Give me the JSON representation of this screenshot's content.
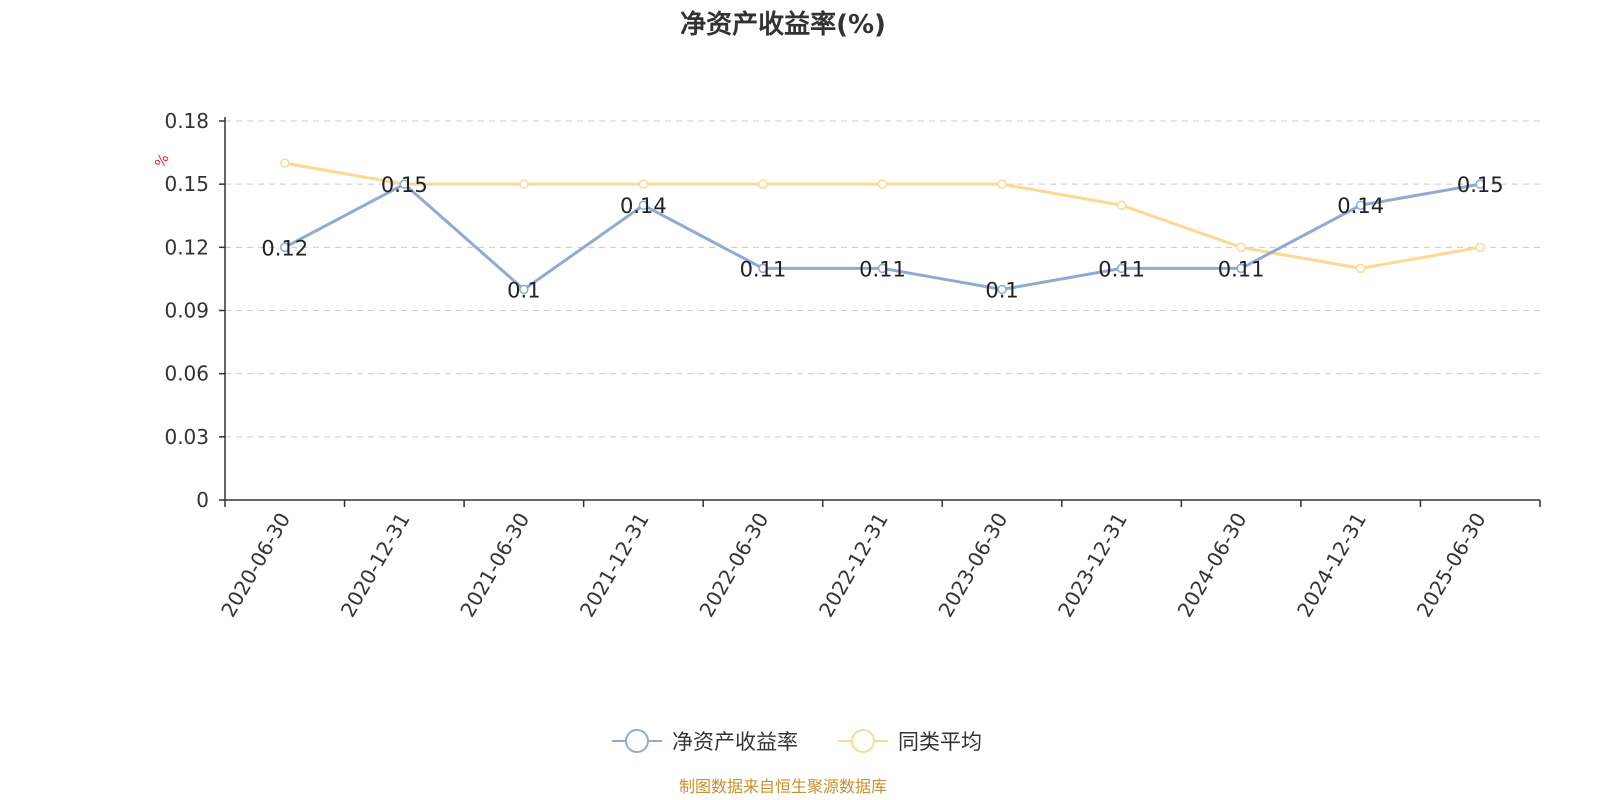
{
  "chart_data": {
    "type": "line",
    "title": "净资产收益率(%)",
    "ylabel": "%",
    "ylim": [
      0,
      0.18
    ],
    "yticks": [
      "0",
      "0.03",
      "0.06",
      "0.09",
      "0.12",
      "0.15",
      "0.18"
    ],
    "grid": true,
    "legend_position": "bottom",
    "categories": [
      "2020-06-30",
      "2020-12-31",
      "2021-06-30",
      "2021-12-31",
      "2022-06-30",
      "2022-12-31",
      "2023-06-30",
      "2023-12-31",
      "2024-06-30",
      "2024-12-31",
      "2025-06-30"
    ],
    "series": [
      {
        "name": "净资产收益率",
        "color": "#8eaad5",
        "values": [
          0.12,
          0.15,
          0.1,
          0.14,
          0.11,
          0.11,
          0.1,
          0.11,
          0.11,
          0.14,
          0.15
        ],
        "labels": [
          "0.12",
          "0.15",
          "0.1",
          "0.14",
          "0.11",
          "0.11",
          "0.1",
          "0.11",
          "0.11",
          "0.14",
          "0.15"
        ]
      },
      {
        "name": "同类平均",
        "color": "#fad994",
        "values": [
          0.16,
          0.15,
          0.15,
          0.15,
          0.15,
          0.15,
          0.15,
          0.14,
          0.12,
          0.11,
          0.12
        ]
      }
    ],
    "source": "制图数据来自恒生聚源数据库"
  }
}
